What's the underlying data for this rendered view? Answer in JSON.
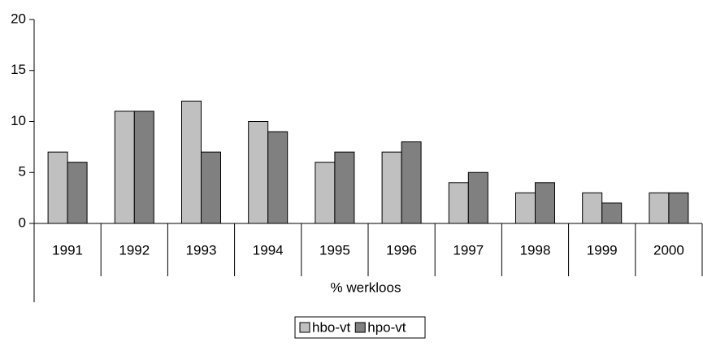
{
  "chart_data": {
    "type": "bar",
    "categories": [
      "1991",
      "1992",
      "1993",
      "1994",
      "1995",
      "1996",
      "1997",
      "1998",
      "1999",
      "2000"
    ],
    "series": [
      {
        "name": "hbo-vt",
        "color": "#c0c0c0",
        "values": [
          7,
          11,
          12,
          10,
          6,
          7,
          4,
          3,
          3,
          3
        ]
      },
      {
        "name": "hpo-vt",
        "color": "#808080",
        "values": [
          6,
          11,
          7,
          9,
          7,
          8,
          5,
          4,
          2,
          3
        ]
      }
    ],
    "x_label": "% werkloos",
    "ylim": [
      0,
      20
    ],
    "yticks": [
      0,
      5,
      10,
      15,
      20
    ],
    "legend": "bottom"
  }
}
